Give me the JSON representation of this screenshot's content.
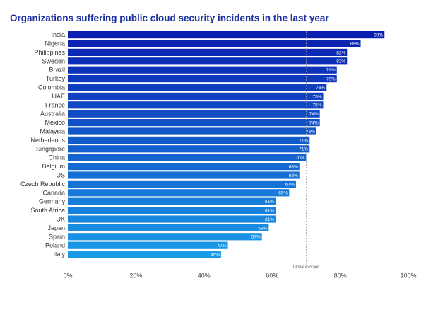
{
  "chart_data": {
    "type": "bar",
    "orientation": "horizontal",
    "title": "Organizations suffering public cloud security incidents in the last year",
    "categories": [
      "India",
      "Nigeria",
      "Philippines",
      "Sweden",
      "Brazil",
      "Turkey",
      "Colombia",
      "UAE",
      "France",
      "Australia",
      "Mexico",
      "Malaysia",
      "Netherlands",
      "Singapore",
      "China",
      "Belgium",
      "US",
      "Czech Republic",
      "Canada",
      "Germany",
      "South Africa",
      "UK",
      "Japan",
      "Spain",
      "Poland",
      "Italy"
    ],
    "values": [
      93,
      86,
      82,
      82,
      79,
      79,
      76,
      75,
      75,
      74,
      74,
      73,
      71,
      71,
      70,
      68,
      68,
      67,
      65,
      61,
      61,
      61,
      59,
      57,
      47,
      45
    ],
    "value_labels": [
      "93%",
      "86%",
      "82%",
      "82%",
      "79%",
      "79%",
      "76%",
      "75%",
      "75%",
      "74%",
      "74%",
      "73%",
      "71%",
      "71%",
      "70%",
      "68%",
      "68%",
      "67%",
      "65%",
      "61%",
      "61%",
      "61%",
      "59%",
      "57%",
      "47%",
      "45%"
    ],
    "xlim": [
      0,
      100
    ],
    "x_ticks": [
      0,
      20,
      40,
      60,
      80,
      100
    ],
    "x_tick_labels": [
      "0%",
      "20%",
      "40%",
      "60%",
      "80%",
      "100%"
    ],
    "reference_line": {
      "label": "Global Average",
      "value": 70
    },
    "colors": {
      "top": "#0a1fb0",
      "bottom": "#1a9be8",
      "title": "#1a2fa0",
      "reference": "#999999"
    },
    "grid": false,
    "legend": "none"
  }
}
